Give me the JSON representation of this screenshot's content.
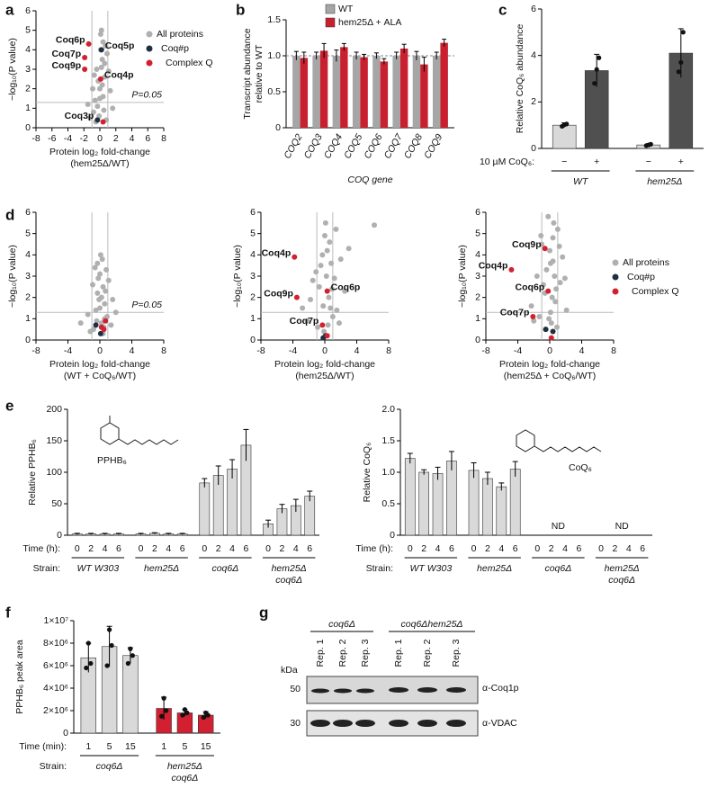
{
  "panel_labels": [
    "a",
    "b",
    "c",
    "d",
    "e",
    "f",
    "g"
  ],
  "chart_data": [
    {
      "type": "scatter",
      "xlabel": [
        "Protein log₂ fold-change",
        "(hem25Δ/WT)"
      ],
      "ylabel": [
        "−log₁₀(P value)"
      ],
      "xlim": [
        -8,
        8
      ],
      "xticks": [
        -8,
        -6,
        -4,
        -2,
        0,
        2,
        4,
        6,
        8
      ],
      "ylim": [
        0,
        6
      ],
      "yticks": [
        0,
        1,
        2,
        3,
        4,
        5,
        6
      ],
      "vlines": [
        -1,
        1
      ],
      "hline": 1.3,
      "hline_label": "P=0.05",
      "series": [
        {
          "name": "All proteins",
          "color": "#b0b0b0",
          "x": [
            -0.5,
            -0.3,
            0,
            0.2,
            0.4,
            0.6,
            -0.8,
            0.9,
            -1.2,
            1.3,
            0.1,
            -0.2,
            0.3,
            0.5,
            -0.6,
            0.7,
            -0.1,
            0.2,
            1.1,
            -0.9,
            0.4,
            0,
            0.8,
            -0.4,
            1.6,
            -1.5,
            0.6,
            0.3,
            -0.7,
            0.1
          ],
          "values": [
            0.3,
            1.1,
            2.0,
            3.1,
            1.6,
            2.6,
            0.8,
            3.8,
            0.5,
            1.9,
            4.8,
            2.4,
            3.5,
            0.9,
            1.4,
            4.2,
            0.6,
            5.0,
            2.9,
            2.0,
            4.4,
            1.5,
            0.4,
            3.0,
            1.0,
            1.2,
            3.3,
            2.2,
            2.7,
            4.0
          ]
        },
        {
          "name": "Coq#p",
          "color": "#1e3040",
          "x": [
            0.2,
            -0.3
          ],
          "values": [
            4.0,
            0.4
          ],
          "labels": [
            "Coq5p",
            "Coq3p"
          ]
        },
        {
          "name": "Complex Q",
          "color": "#d32030",
          "x": [
            -1.4,
            -1.9,
            -1.9,
            0.1,
            0.4
          ],
          "values": [
            4.3,
            3.6,
            3.0,
            2.5,
            0.3
          ],
          "labels": [
            "Coq6p",
            "Coq7p",
            "Coq9p",
            "Coq4p",
            null
          ]
        }
      ]
    },
    {
      "type": "bar",
      "categories": [
        "COQ2",
        "COQ3",
        "COQ4",
        "COQ5",
        "COQ6",
        "COQ7",
        "COQ8",
        "COQ9"
      ],
      "xlabel": [
        "COQ gene"
      ],
      "ylabel": [
        "Transcript abundance",
        "relative to WT"
      ],
      "ylim": [
        0,
        1.5
      ],
      "yticks": [
        0,
        0.5,
        {
          "value": 1,
          "label": "1.0"
        },
        1.5
      ],
      "ref_line": 1,
      "series": [
        {
          "name": "WT",
          "color": "#a6a6a6",
          "values": [
            1,
            1,
            1,
            1,
            1,
            1,
            1,
            1
          ],
          "errors": [
            0.06,
            0.05,
            0.08,
            0.05,
            0.04,
            0.05,
            0.06,
            0.05
          ]
        },
        {
          "name": "hem25Δ + ALA",
          "color": "#c8202f",
          "values": [
            0.97,
            1.07,
            1.12,
            0.98,
            0.92,
            1.1,
            0.88,
            1.18
          ],
          "errors": [
            0.08,
            0.1,
            0.05,
            0.04,
            0.04,
            0.06,
            0.1,
            0.05
          ]
        }
      ]
    },
    {
      "type": "bar",
      "categories": [
        "−",
        "+",
        "−",
        "+"
      ],
      "groups": [
        [
          "WT"
        ],
        [
          "hem25Δ"
        ]
      ],
      "row_labels": [
        "10 µM CoQ₆:"
      ],
      "values": [
        1,
        3.35,
        0.15,
        4.1
      ],
      "errors": [
        0.1,
        0.7,
        0.05,
        1.05
      ],
      "points": [
        [
          0.95,
          1.02,
          1.05
        ],
        [
          2.8,
          3.4,
          3.9
        ],
        [
          0.12,
          0.15,
          0.18
        ],
        [
          3.3,
          3.7,
          5.0
        ]
      ],
      "colors": [
        "#d9d9d9",
        "#505050",
        "#d9d9d9",
        "#505050"
      ],
      "ylabel": [
        "Relative CoQ₆ abundance"
      ],
      "ylim": [
        0,
        6
      ],
      "yticks": [
        0,
        2,
        4,
        6
      ]
    },
    {
      "type": "scatter",
      "xlabel": [
        "Protein log₂ fold-change",
        "(WT + CoQ₆/WT)"
      ],
      "ylabel": [
        "−log₁₀(P value)"
      ],
      "xlim": [
        -8,
        8
      ],
      "xticks": [
        -8,
        -4,
        0,
        4,
        8
      ],
      "ylim": [
        0,
        6
      ],
      "yticks": [
        0,
        1,
        2,
        3,
        4,
        5,
        6
      ],
      "vlines": [
        -1,
        1
      ],
      "hline": 1.3,
      "hline_label": "P=0.05",
      "series": [
        {
          "name": "All proteins",
          "color": "#b0b0b0",
          "x": [
            -0.8,
            -0.5,
            -0.3,
            0,
            0.2,
            0.4,
            0.6,
            0.9,
            -1.2,
            1.1,
            -0.6,
            0.3,
            -0.1,
            0.5,
            0.8,
            -0.4,
            0.1,
            1.4,
            -1.5,
            0.2,
            0,
            -0.2,
            0.7,
            2.0,
            -2.4,
            1.6,
            -0.9,
            0.4,
            0.6,
            -0.3
          ],
          "values": [
            0.5,
            1.4,
            2.2,
            3.1,
            0.8,
            2.5,
            1.7,
            1.1,
            0.4,
            2.8,
            3.4,
            3.8,
            1.9,
            0.6,
            3.3,
            0.9,
            4.0,
            0.7,
            1.2,
            2.0,
            1.5,
            2.9,
            2.3,
            1.3,
            0.8,
            1.9,
            2.6,
            0.3,
            1.0,
            3.6
          ]
        },
        {
          "name": "Coq#p",
          "color": "#1e3040",
          "x": [
            -0.5,
            0.1
          ],
          "values": [
            0.7,
            0.3
          ]
        },
        {
          "name": "Complex Q",
          "color": "#d32030",
          "x": [
            0.2,
            0.5,
            0.7
          ],
          "values": [
            0.6,
            0.5,
            0.9
          ]
        }
      ]
    },
    {
      "type": "scatter",
      "xlabel": [
        "Protein log₂ fold-change",
        "(hem25Δ/WT)"
      ],
      "ylabel": [
        "−log₁₀(P value)"
      ],
      "xlim": [
        -8,
        8
      ],
      "xticks": [
        -8,
        -4,
        0,
        4,
        8
      ],
      "ylim": [
        0,
        6
      ],
      "yticks": [
        0,
        1,
        2,
        3,
        4,
        5,
        6
      ],
      "vlines": [
        -1,
        1
      ],
      "hline": 1.3,
      "series": [
        {
          "color": "#b0b0b0",
          "x": [
            -2.8,
            -1.5,
            -0.9,
            -0.5,
            0,
            0.3,
            0.5,
            0.8,
            1.2,
            1.5,
            2.0,
            2.5,
            -2.2,
            -0.2,
            0.1,
            0.6,
            1.0,
            -1.1,
            0.4,
            -0.7,
            3.0,
            6.2,
            1.8,
            -1.8,
            0.2,
            0.9,
            -0.3,
            1.4,
            0.7,
            -0.1
          ],
          "values": [
            1.5,
            2.8,
            0.6,
            3.5,
            4.9,
            4.2,
            2.0,
            3.6,
            2.9,
            1.4,
            3.8,
            2.3,
            0.9,
            1.6,
            5.5,
            4.6,
            1.1,
            3.2,
            0.7,
            2.5,
            4.3,
            5.4,
            0.8,
            1.9,
            3.0,
            2.4,
            4.0,
            5.2,
            1.5,
            0.4
          ]
        },
        {
          "color": "#1e3040",
          "x": [
            0.1,
            -0.2
          ],
          "values": [
            0.2,
            0.1
          ]
        },
        {
          "color": "#d32030",
          "x": [
            -3.8,
            -3.5,
            0.3,
            -0.3,
            0.3
          ],
          "values": [
            3.9,
            2.0,
            2.3,
            0.7,
            0.2
          ],
          "labels": [
            "Coq4p",
            "Coq9p",
            "Coq6p",
            "Coq7p",
            null
          ]
        }
      ]
    },
    {
      "type": "scatter",
      "xlabel": [
        "Protein log₂ fold-change",
        "(hem25Δ + CoQ₆/WT)"
      ],
      "ylabel": [
        "−log₁₀(P value)"
      ],
      "xlim": [
        -8,
        8
      ],
      "xticks": [
        -8,
        -4,
        0,
        4,
        8
      ],
      "ylim": [
        0,
        6
      ],
      "yticks": [
        0,
        1,
        2,
        3,
        4,
        5,
        6
      ],
      "vlines": [
        -1,
        1
      ],
      "hline": 1.3,
      "series": [
        {
          "color": "#b0b0b0",
          "x": [
            -2.3,
            -1.6,
            -1.0,
            -0.6,
            -0.2,
            0.1,
            0.4,
            0.7,
            1.0,
            1.3,
            -1.3,
            0.2,
            -0.4,
            0.9,
            1.6,
            -0.8,
            0.5,
            2.1,
            -2.0,
            0,
            0.3,
            -0.1,
            0.6,
            1.2,
            -0.5,
            0.8,
            1.9,
            -1.1,
            0.1,
            0.4
          ],
          "values": [
            1.6,
            3.0,
            4.5,
            2.2,
            5.8,
            3.6,
            4.8,
            1.8,
            5.2,
            2.7,
            1.1,
            0.8,
            3.3,
            0.6,
            3.9,
            2.6,
            5.5,
            1.4,
            0.9,
            4.2,
            2.0,
            1.0,
            3.0,
            4.4,
            0.5,
            2.4,
            2.9,
            4.9,
            1.3,
            3.7
          ]
        },
        {
          "color": "#1e3040",
          "x": [
            -0.5,
            0.4
          ],
          "values": [
            0.5,
            0.4
          ]
        },
        {
          "color": "#d32030",
          "x": [
            -4.8,
            -0.6,
            -0.2,
            -2.1,
            0.2
          ],
          "values": [
            3.3,
            4.3,
            2.3,
            1.1,
            0.1
          ],
          "labels": [
            "Coq4p",
            "Coq9p",
            "Coq6p",
            "Coq7p",
            null
          ]
        }
      ]
    },
    {
      "type": "bar",
      "categories": [
        0,
        2,
        4,
        6,
        0,
        2,
        4,
        6,
        0,
        2,
        4,
        6,
        0,
        2,
        4,
        6
      ],
      "groups": [
        [
          "WT W303"
        ],
        [
          "hem25Δ"
        ],
        [
          "coq6Δ"
        ],
        [
          "hem25Δ",
          "coq6Δ"
        ]
      ],
      "row_labels": [
        "Time (h):",
        "Strain:"
      ],
      "values": [
        2,
        2,
        2,
        2,
        2,
        3,
        2,
        2,
        83,
        95,
        105,
        143,
        18,
        42,
        47,
        62
      ],
      "errors": [
        1,
        1,
        1,
        1,
        1,
        1,
        1,
        1,
        7,
        15,
        15,
        25,
        6,
        7,
        10,
        8
      ],
      "color": "#d9d9d9",
      "ylabel": [
        "Relative PPHB₆"
      ],
      "ylim": [
        0,
        200
      ],
      "yticks": [
        0,
        50,
        100,
        150,
        200
      ],
      "structure_label": "PPHB₆"
    },
    {
      "type": "bar",
      "categories": [
        0,
        2,
        4,
        6,
        0,
        2,
        4,
        6,
        0,
        2,
        4,
        6,
        0,
        2,
        4,
        6
      ],
      "groups": [
        [
          "WT W303"
        ],
        [
          "hem25Δ"
        ],
        [
          "coq6Δ"
        ],
        [
          "hem25Δ",
          "coq6Δ"
        ]
      ],
      "row_labels": [
        "Time (h):",
        "Strain:"
      ],
      "values": [
        1.22,
        1.0,
        0.98,
        1.18,
        1.03,
        0.9,
        0.77,
        1.05,
        null,
        null,
        null,
        null,
        null,
        null,
        null,
        null
      ],
      "errors": [
        0.08,
        0.04,
        0.1,
        0.15,
        0.12,
        0.1,
        0.06,
        0.12,
        null,
        null,
        null,
        null,
        null,
        null,
        null,
        null
      ],
      "group_notes": [
        null,
        null,
        "ND",
        "ND"
      ],
      "color": "#d9d9d9",
      "ylabel": [
        "Relative CoQ₆"
      ],
      "ylim": [
        0,
        2
      ],
      "yticks": [
        0,
        0.5,
        {
          "value": 1,
          "label": "1.0"
        },
        1.5,
        {
          "value": 2,
          "label": "2.0"
        }
      ],
      "structure_label": "CoQ₆"
    },
    {
      "type": "bar",
      "categories": [
        1,
        5,
        15,
        1,
        5,
        15
      ],
      "groups": [
        [
          "coq6Δ"
        ],
        [
          "hem25Δ",
          "coq6Δ"
        ]
      ],
      "row_labels": [
        "Time (min):",
        "Strain:"
      ],
      "values": [
        6700000,
        7700000,
        6900000,
        2200000,
        1800000,
        1600000
      ],
      "errors": [
        1300000,
        1800000,
        700000,
        1000000,
        300000,
        300000
      ],
      "points": [
        [
          5800000,
          8000000,
          6200000
        ],
        [
          6000000,
          9200000,
          7800000
        ],
        [
          6200000,
          7500000,
          6900000
        ],
        [
          1500000,
          3100000,
          2000000
        ],
        [
          1600000,
          2100000,
          1800000
        ],
        [
          1400000,
          1800000,
          1600000
        ]
      ],
      "colors": [
        "#d9d9d9",
        "#d9d9d9",
        "#d9d9d9",
        "#d32030",
        "#d32030",
        "#d32030"
      ],
      "ylabel": [
        "PPHB₆ peak area"
      ],
      "ylim": [
        0,
        10000000
      ],
      "yticks": [
        0,
        {
          "value": 2000000,
          "label": "2×10⁶"
        },
        {
          "value": 4000000,
          "label": "4×10⁶"
        },
        {
          "value": 6000000,
          "label": "6×10⁶"
        },
        {
          "value": 8000000,
          "label": "8×10⁶"
        },
        {
          "value": 10000000,
          "label": "1×10⁷"
        }
      ]
    }
  ],
  "blot": {
    "groups": [
      "coq6Δ",
      "coq6Δhem25Δ"
    ],
    "lanes": [
      "Rep. 1",
      "Rep. 2",
      "Rep. 3",
      "Rep. 1",
      "Rep. 2",
      "Rep. 3"
    ],
    "kda_label": "kDa",
    "markers": [
      50,
      30
    ],
    "antibodies": [
      "α-Coq1p",
      "α-VDAC"
    ]
  }
}
